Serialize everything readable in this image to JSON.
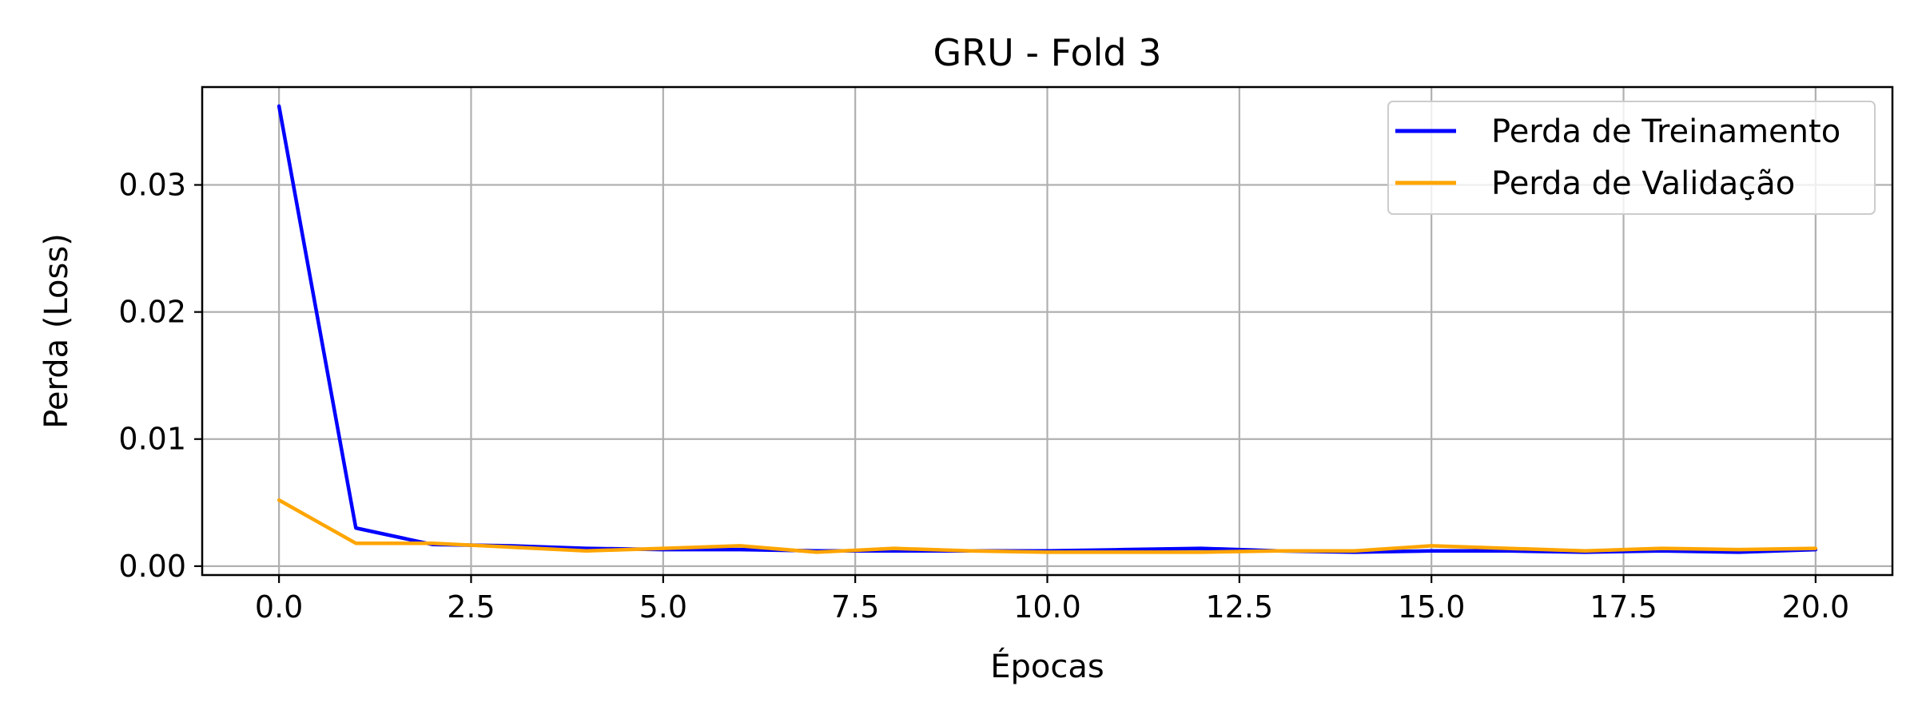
{
  "chart_data": {
    "type": "line",
    "title": "GRU - Fold 3",
    "xlabel": "Épocas",
    "ylabel": "Perda (Loss)",
    "xlim": [
      -1.0,
      21.0
    ],
    "ylim": [
      -0.0007,
      0.0377
    ],
    "x_ticks": [
      0.0,
      2.5,
      5.0,
      7.5,
      10.0,
      12.5,
      15.0,
      17.5,
      20.0
    ],
    "x_tick_labels": [
      "0.0",
      "2.5",
      "5.0",
      "7.5",
      "10.0",
      "12.5",
      "15.0",
      "17.5",
      "20.0"
    ],
    "y_ticks": [
      0.0,
      0.01,
      0.02,
      0.03
    ],
    "y_tick_labels": [
      "0.00",
      "0.01",
      "0.02",
      "0.03"
    ],
    "grid": true,
    "legend_position": "top-right",
    "x": [
      0,
      1,
      2,
      3,
      4,
      5,
      6,
      7,
      8,
      9,
      10,
      11,
      12,
      13,
      14,
      15,
      16,
      17,
      18,
      19,
      20
    ],
    "series": [
      {
        "name": "Perda de Treinamento",
        "color": "#0000ff",
        "values": [
          0.0362,
          0.003,
          0.0017,
          0.0016,
          0.0014,
          0.0013,
          0.0013,
          0.0012,
          0.0012,
          0.0012,
          0.0012,
          0.0013,
          0.0014,
          0.0012,
          0.0011,
          0.0012,
          0.0012,
          0.0011,
          0.0012,
          0.0011,
          0.0013
        ]
      },
      {
        "name": "Perda de Validação",
        "color": "#ffa500",
        "values": [
          0.0052,
          0.0018,
          0.0018,
          0.0015,
          0.0012,
          0.0014,
          0.0016,
          0.0011,
          0.0014,
          0.0012,
          0.0011,
          0.0011,
          0.0011,
          0.0012,
          0.0012,
          0.0016,
          0.0014,
          0.0012,
          0.0014,
          0.0013,
          0.0014
        ]
      }
    ]
  }
}
